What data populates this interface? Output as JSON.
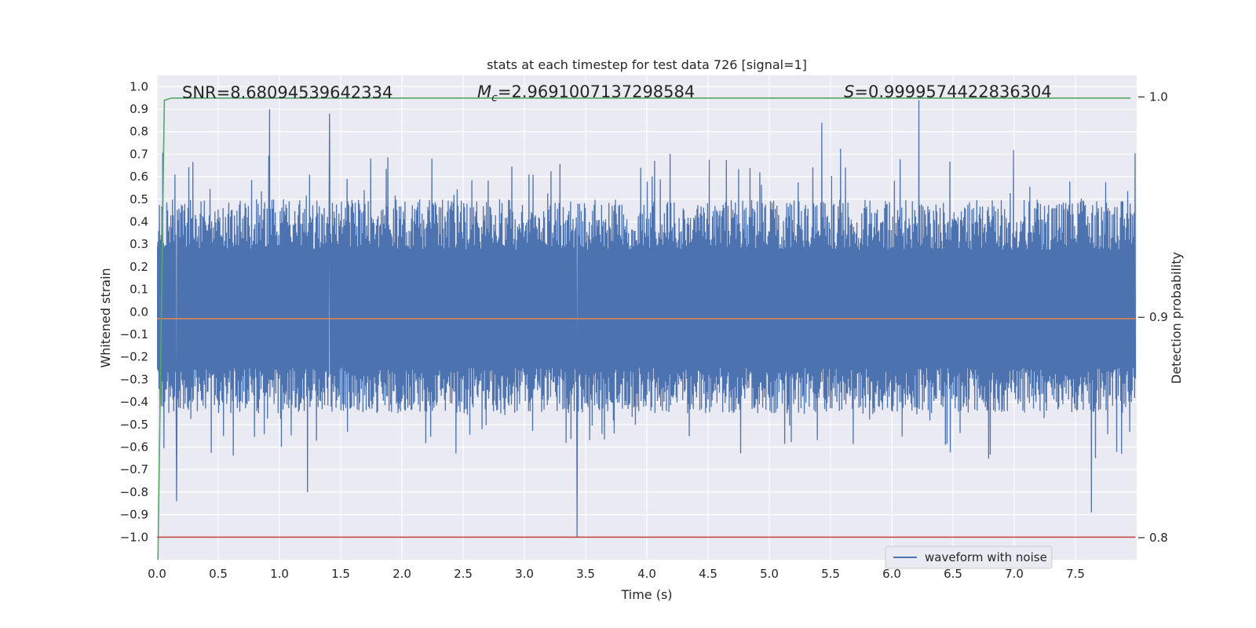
{
  "chart_data": {
    "type": "line",
    "title": "stats at each timestep for test data 726 [signal=1]",
    "xlabel": "Time (s)",
    "ylabel": "Whitened strain",
    "y2label": "Detection probability",
    "xlim": [
      0.0,
      8.0
    ],
    "ylim": [
      -1.1,
      1.05
    ],
    "y2lim": [
      0.79,
      1.0098
    ],
    "xticks": [
      0.0,
      0.5,
      1.0,
      1.5,
      2.0,
      2.5,
      3.0,
      3.5,
      4.0,
      4.5,
      5.0,
      5.5,
      6.0,
      6.5,
      7.0,
      7.5
    ],
    "xtick_labels": [
      "0.0",
      "0.5",
      "1.0",
      "1.5",
      "2.0",
      "2.5",
      "3.0",
      "3.5",
      "4.0",
      "4.5",
      "5.0",
      "5.5",
      "6.0",
      "6.5",
      "7.0",
      "7.5"
    ],
    "yticks": [
      1.0,
      0.9,
      0.8,
      0.7,
      0.6,
      0.5,
      0.4,
      0.3,
      0.2,
      0.1,
      0.0,
      -0.1,
      -0.2,
      -0.3,
      -0.4,
      -0.5,
      -0.6,
      -0.7,
      -0.8,
      -0.9,
      -1.0
    ],
    "ytick_labels": [
      "1.0",
      "0.9",
      "0.8",
      "0.7",
      "0.6",
      "0.5",
      "0.4",
      "0.3",
      "0.2",
      "0.1",
      "0.0",
      "−0.1",
      "−0.2",
      "−0.3",
      "−0.4",
      "−0.5",
      "−0.6",
      "−0.7",
      "−0.8",
      "−0.9",
      "−1.0"
    ],
    "y2ticks": [
      1.0,
      0.9,
      0.8
    ],
    "y2tick_labels": [
      "1.0",
      "0.9",
      "0.8"
    ],
    "grid": true,
    "legend_placement": "lower-right",
    "annotations": [
      {
        "label": "SNR",
        "value": "8.68094539642334"
      },
      {
        "label": "M",
        "subscript": "c",
        "value": "2.9691007137298584"
      },
      {
        "label": "S",
        "value": "0.9999574422836304"
      }
    ],
    "series": [
      {
        "name": "waveform with noise",
        "color": "#4c72b0",
        "axis": "left",
        "kind": "noise",
        "x_range": [
          0.0,
          7.99
        ],
        "envelope_positive": 0.5,
        "envelope_negative": -0.45,
        "peaks": [
          {
            "x": 0.16,
            "y": 0.81
          },
          {
            "x": 0.92,
            "y": 0.9
          },
          {
            "x": 1.41,
            "y": 0.88
          },
          {
            "x": 5.43,
            "y": 0.84
          },
          {
            "x": 6.22,
            "y": 0.94
          },
          {
            "x": 0.16,
            "y": -0.84
          },
          {
            "x": 1.23,
            "y": -0.8
          },
          {
            "x": 3.43,
            "y": -1.0
          },
          {
            "x": 7.63,
            "y": -0.89
          }
        ]
      },
      {
        "name": "",
        "color": "#dd8452",
        "axis": "left",
        "kind": "constant",
        "x": [
          0.0,
          7.99
        ],
        "y": [
          -0.03,
          -0.03
        ]
      },
      {
        "name": "",
        "color": "#55a868",
        "axis": "right",
        "kind": "line",
        "x": [
          0.0,
          0.06,
          0.12,
          1.0,
          3.0,
          5.0,
          7.0,
          7.95
        ],
        "y": [
          0.76,
          0.9985,
          0.9995,
          0.9995,
          0.9995,
          0.9995,
          0.9995,
          0.9995
        ]
      },
      {
        "name": "",
        "color": "#c44e52",
        "axis": "left",
        "kind": "constant",
        "x": [
          0.0,
          7.99
        ],
        "y": [
          -1.0,
          -1.0
        ]
      }
    ]
  }
}
